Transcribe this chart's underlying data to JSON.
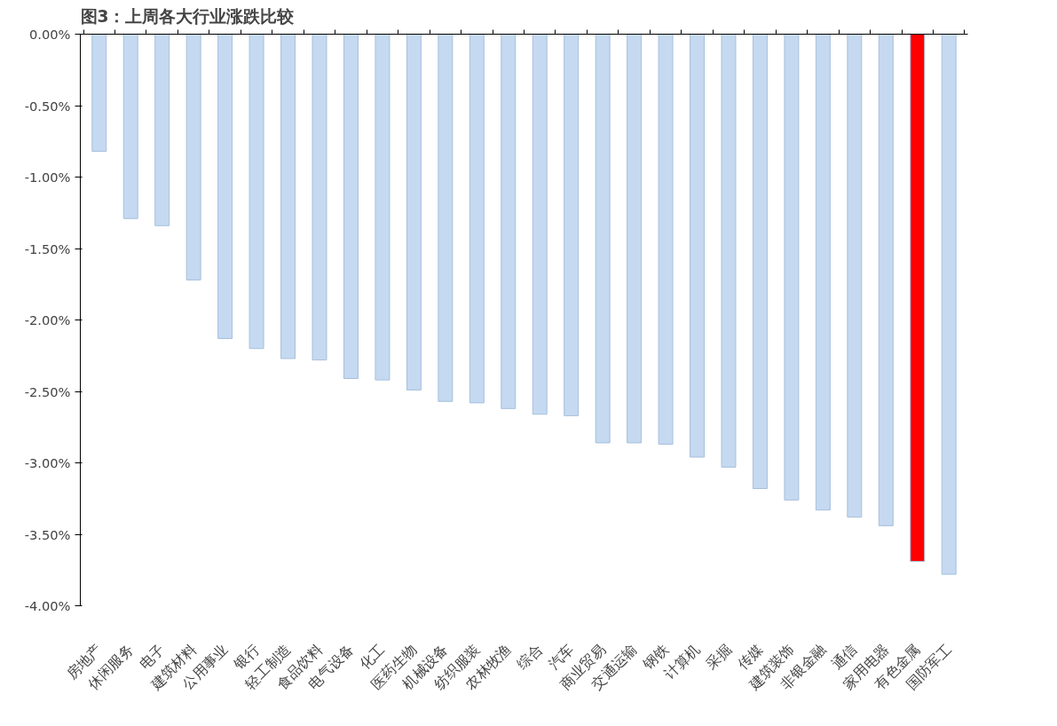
{
  "chart_data": {
    "type": "bar",
    "title": "图3：上周各大行业涨跌比较",
    "categories": [
      "房地产",
      "休闲服务",
      "电子",
      "建筑材料",
      "公用事业",
      "银行",
      "轻工制造",
      "食品饮料",
      "电气设备",
      "化工",
      "医药生物",
      "机械设备",
      "纺织服装",
      "农林牧渔",
      "综合",
      "汽车",
      "商业贸易",
      "交通运输",
      "钢铁",
      "计算机",
      "采掘",
      "传媒",
      "建筑装饰",
      "非银金融",
      "通信",
      "家用电器",
      "有色金属",
      "国防军工"
    ],
    "values": [
      -0.82,
      -1.29,
      -1.34,
      -1.72,
      -2.13,
      -2.2,
      -2.27,
      -2.28,
      -2.41,
      -2.42,
      -2.49,
      -2.57,
      -2.58,
      -2.62,
      -2.66,
      -2.67,
      -2.86,
      -2.86,
      -2.87,
      -2.96,
      -3.03,
      -3.18,
      -3.26,
      -3.33,
      -3.38,
      -3.44,
      -3.69,
      -3.78
    ],
    "colors": [
      "#c5d9f1",
      "#c5d9f1",
      "#c5d9f1",
      "#c5d9f1",
      "#c5d9f1",
      "#c5d9f1",
      "#c5d9f1",
      "#c5d9f1",
      "#c5d9f1",
      "#c5d9f1",
      "#c5d9f1",
      "#c5d9f1",
      "#c5d9f1",
      "#c5d9f1",
      "#c5d9f1",
      "#c5d9f1",
      "#c5d9f1",
      "#c5d9f1",
      "#c5d9f1",
      "#c5d9f1",
      "#c5d9f1",
      "#c5d9f1",
      "#c5d9f1",
      "#c5d9f1",
      "#c5d9f1",
      "#c5d9f1",
      "#ff0000",
      "#c5d9f1"
    ],
    "ylim": [
      -4,
      0
    ],
    "yticks": [
      {
        "value": 0,
        "label": "0.00%"
      },
      {
        "value": -0.5,
        "label": "-0.50%"
      },
      {
        "value": -1,
        "label": "-1.00%"
      },
      {
        "value": -1.5,
        "label": "-1.50%"
      },
      {
        "value": -2,
        "label": "-2.00%"
      },
      {
        "value": -2.5,
        "label": "-2.50%"
      },
      {
        "value": -3,
        "label": "-3.00%"
      },
      {
        "value": -3.5,
        "label": "-3.50%"
      },
      {
        "value": -4,
        "label": "-4.00%"
      }
    ],
    "grid": false
  }
}
